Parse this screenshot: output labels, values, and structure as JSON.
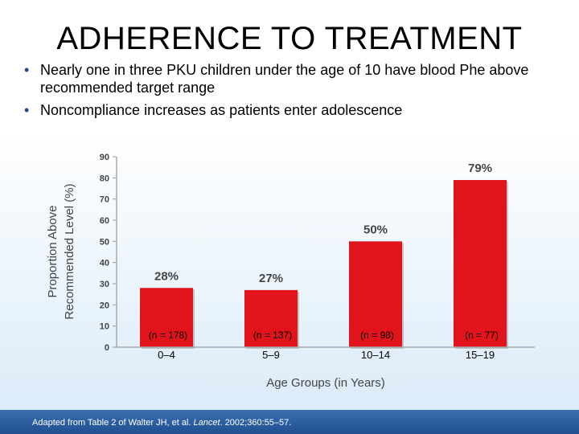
{
  "title": "ADHERENCE TO TREATMENT",
  "bullets": [
    "Nearly one in three PKU children under the age of 10 have blood Phe above recommended target range",
    "Noncompliance increases as patients enter adolescence"
  ],
  "footer": {
    "prefix": "Adapted from Table 2 of Walter JH, et al. ",
    "journal": "Lancet",
    "suffix": ". 2002;360:55–57."
  },
  "colors": {
    "bar": "#e0141a",
    "footer": "#2a5c9e",
    "bullet": "#1f4e8c"
  },
  "chart_data": {
    "type": "bar",
    "categories": [
      "0–4",
      "5–9",
      "10–14",
      "15–19"
    ],
    "values": [
      28,
      27,
      50,
      79
    ],
    "value_labels": [
      "28%",
      "27%",
      "50%",
      "79%"
    ],
    "n_labels": [
      "(n = 178)",
      "(n = 137)",
      "(n = 98)",
      "(n = 77)"
    ],
    "xlabel": "Age Groups (in Years)",
    "ylabel_lines": [
      "Proportion Above",
      "Recommended Level (%)"
    ],
    "ylim": [
      0,
      90
    ],
    "yticks": [
      0,
      10,
      20,
      30,
      40,
      50,
      60,
      70,
      80,
      90
    ],
    "grid": false
  }
}
